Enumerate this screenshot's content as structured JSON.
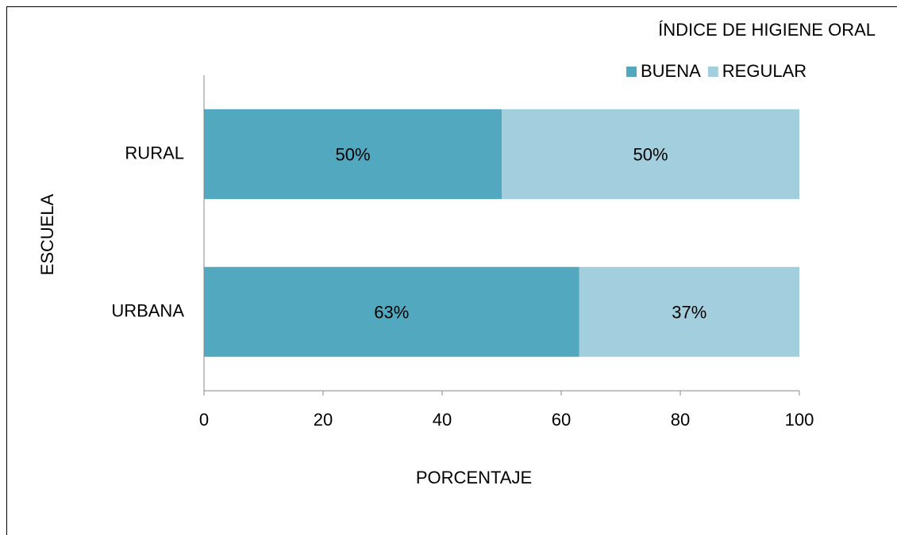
{
  "chart_data": {
    "type": "bar",
    "orientation": "horizontal",
    "stacked": true,
    "legend_title": "ÍNDICE DE HIGIENE ORAL",
    "x_label": "PORCENTAJE",
    "y_label": "ESCUELA",
    "categories": [
      "RURAL",
      "URBANA"
    ],
    "series": [
      {
        "name": "BUENA",
        "color": "#52a8bf",
        "values": [
          50,
          63
        ],
        "value_labels": [
          "50%",
          "63%"
        ]
      },
      {
        "name": "REGULAR",
        "color": "#a3cedd",
        "values": [
          50,
          37
        ],
        "value_labels": [
          "50%",
          "37%"
        ]
      }
    ],
    "xlim": [
      0,
      100
    ],
    "xticks": [
      0,
      20,
      40,
      60,
      80,
      100
    ],
    "grid": false,
    "legend": "top-right"
  }
}
